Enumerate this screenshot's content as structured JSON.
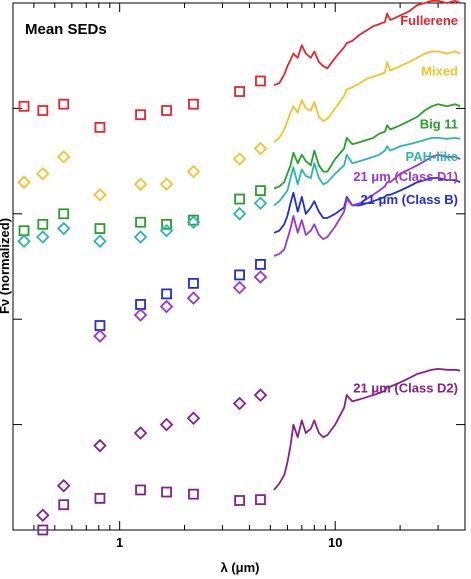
{
  "chart_data": {
    "type": "scatter",
    "title": "Mean SEDs",
    "xlabel": "λ (μm)",
    "ylabel": "Fν (normalized)",
    "xscale": "log",
    "xlim": [
      0.32,
      40
    ],
    "ylim": [
      0,
      12.5
    ],
    "xticks": [
      1,
      10
    ],
    "xtick_labels": [
      "1",
      "10"
    ],
    "grid": false,
    "legend": "inline labels on right",
    "photometry_wavelengths": [
      0.36,
      0.44,
      0.55,
      0.81,
      1.25,
      1.65,
      2.2,
      3.6,
      4.5
    ],
    "series": [
      {
        "name": "Fullerene",
        "label_text": "Fullerene",
        "color": "#e8262b",
        "marker": "square",
        "points": [
          [
            0.36,
            10.05
          ],
          [
            0.44,
            9.95
          ],
          [
            0.55,
            10.1
          ],
          [
            0.81,
            9.55
          ],
          [
            1.25,
            9.85
          ],
          [
            1.65,
            9.95
          ],
          [
            2.2,
            10.1
          ],
          [
            3.6,
            10.4
          ],
          [
            4.5,
            10.65
          ]
        ],
        "spectrum_wl": [
          5.2,
          5.5,
          5.8,
          6.0,
          6.2,
          6.4,
          6.7,
          7.0,
          7.3,
          7.7,
          8.0,
          8.4,
          8.8,
          9.2,
          10,
          11,
          11.3,
          12,
          13,
          14,
          15,
          16,
          17,
          17.4,
          18,
          19,
          20,
          22,
          24,
          26,
          28,
          30,
          33,
          36,
          38
        ],
        "spectrum_flux": [
          10.55,
          10.6,
          10.8,
          11.0,
          11.15,
          11.3,
          11.2,
          11.5,
          11.3,
          11.2,
          11.35,
          11.1,
          11.0,
          10.95,
          11.2,
          11.45,
          11.55,
          11.6,
          11.75,
          11.85,
          11.95,
          12.0,
          12.05,
          12.25,
          12.1,
          12.15,
          12.2,
          12.3,
          12.45,
          12.5,
          12.55,
          12.55,
          12.5,
          12.55,
          12.5
        ]
      },
      {
        "name": "Mixed",
        "label_text": "Mixed",
        "color": "#f5c22c",
        "marker": "diamond",
        "points": [
          [
            0.36,
            8.25
          ],
          [
            0.44,
            8.45
          ],
          [
            0.55,
            8.85
          ],
          [
            0.81,
            7.95
          ],
          [
            1.25,
            8.2
          ],
          [
            1.65,
            8.2
          ],
          [
            2.2,
            8.5
          ],
          [
            3.6,
            8.8
          ],
          [
            4.5,
            9.05
          ]
        ],
        "spectrum_wl": [
          5.2,
          5.5,
          5.8,
          6.0,
          6.2,
          6.4,
          6.7,
          7.0,
          7.3,
          7.7,
          8.0,
          8.4,
          8.8,
          9.2,
          10,
          11,
          11.3,
          12,
          13,
          14,
          15,
          16,
          17,
          17.4,
          18,
          19,
          20,
          22,
          24,
          26,
          28,
          30,
          33,
          36,
          38
        ],
        "spectrum_flux": [
          9.2,
          9.3,
          9.5,
          9.7,
          9.9,
          10.05,
          9.9,
          10.2,
          10.0,
          9.95,
          10.15,
          9.8,
          9.7,
          9.75,
          10.0,
          10.3,
          10.45,
          10.5,
          10.6,
          10.7,
          10.75,
          10.8,
          10.85,
          11.1,
          10.9,
          10.95,
          11.0,
          11.1,
          11.2,
          11.3,
          11.35,
          11.35,
          11.3,
          11.35,
          11.3
        ]
      },
      {
        "name": "Big 11",
        "label_text": "Big 11",
        "color": "#28a02c",
        "marker": "square",
        "points": [
          [
            0.36,
            7.1
          ],
          [
            0.44,
            7.25
          ],
          [
            0.55,
            7.5
          ],
          [
            0.81,
            7.15
          ],
          [
            1.25,
            7.3
          ],
          [
            1.65,
            7.25
          ],
          [
            2.2,
            7.35
          ],
          [
            3.6,
            7.85
          ],
          [
            4.5,
            8.05
          ]
        ],
        "spectrum_wl": [
          5.2,
          5.5,
          5.8,
          6.0,
          6.2,
          6.4,
          6.7,
          7.0,
          7.3,
          7.7,
          8.0,
          8.4,
          8.8,
          9.2,
          10,
          11,
          11.3,
          12,
          13,
          14,
          15,
          16,
          17,
          17.4,
          18,
          19,
          20,
          22,
          24,
          26,
          28,
          30,
          33,
          36,
          38
        ],
        "spectrum_flux": [
          8.1,
          8.15,
          8.25,
          8.45,
          8.65,
          8.95,
          8.7,
          8.9,
          8.75,
          8.65,
          9.0,
          8.65,
          8.5,
          8.5,
          8.8,
          9.05,
          9.3,
          9.15,
          9.2,
          9.25,
          9.3,
          9.4,
          9.45,
          9.6,
          9.5,
          9.55,
          9.6,
          9.7,
          9.8,
          9.95,
          10.05,
          10.1,
          10.05,
          10.1,
          10.05
        ]
      },
      {
        "name": "PAH-like",
        "label_text": "PAH-like",
        "color": "#2bb5b0",
        "marker": "diamond",
        "points": [
          [
            0.36,
            6.85
          ],
          [
            0.44,
            6.95
          ],
          [
            0.55,
            7.15
          ],
          [
            0.81,
            6.85
          ],
          [
            1.25,
            6.95
          ],
          [
            1.65,
            7.1
          ],
          [
            2.2,
            7.3
          ],
          [
            3.6,
            7.5
          ],
          [
            4.5,
            7.75
          ]
        ],
        "spectrum_wl": [
          5.2,
          5.5,
          5.8,
          6.0,
          6.2,
          6.4,
          6.7,
          7.0,
          7.3,
          7.7,
          8.0,
          8.4,
          8.8,
          9.2,
          10,
          11,
          11.3,
          12,
          13,
          14,
          15,
          16,
          17,
          17.4,
          18,
          19,
          20,
          22,
          24,
          26,
          28,
          30,
          33,
          36,
          38
        ],
        "spectrum_flux": [
          7.7,
          7.8,
          7.95,
          8.05,
          8.35,
          8.6,
          8.2,
          8.55,
          8.4,
          8.35,
          8.7,
          8.35,
          8.2,
          8.25,
          8.45,
          8.65,
          8.9,
          8.7,
          8.75,
          8.8,
          8.85,
          8.9,
          9.0,
          9.1,
          9.0,
          9.05,
          9.1,
          9.15,
          9.2,
          9.25,
          9.3,
          9.3,
          9.28,
          9.3,
          9.28
        ]
      },
      {
        "name": "21 μm (Class B)",
        "label_text": "21 μm (Class B)",
        "color": "#1f2ed6",
        "marker": "square",
        "points": [
          [
            0.81,
            4.85
          ],
          [
            1.25,
            5.35
          ],
          [
            1.65,
            5.6
          ],
          [
            2.2,
            5.85
          ],
          [
            3.6,
            6.05
          ],
          [
            4.5,
            6.3
          ]
        ],
        "spectrum_wl": [
          5.2,
          5.5,
          5.8,
          6.0,
          6.2,
          6.4,
          6.7,
          7.0,
          7.3,
          7.7,
          8.0,
          8.4,
          8.8,
          9.2,
          10,
          11,
          11.3,
          12,
          13,
          14,
          15,
          16,
          17,
          17.4,
          18,
          19,
          20,
          22,
          24,
          26,
          28,
          30,
          33,
          36,
          38
        ],
        "spectrum_flux": [
          7.05,
          7.1,
          7.25,
          7.45,
          7.75,
          8.0,
          7.55,
          7.9,
          7.5,
          7.65,
          7.8,
          7.55,
          7.4,
          7.4,
          7.5,
          7.65,
          7.9,
          7.7,
          7.7,
          7.75,
          7.8,
          7.85,
          7.9,
          7.95,
          7.95,
          8.0,
          8.05,
          8.15,
          8.25,
          8.3,
          8.35,
          8.35,
          8.3,
          8.3,
          8.25
        ]
      },
      {
        "name": "21 μm (Class D1)",
        "label_text": "21 μm (Class D1)",
        "color": "#9a36d6",
        "marker": "diamond",
        "points": [
          [
            0.81,
            4.6
          ],
          [
            1.25,
            5.1
          ],
          [
            1.65,
            5.3
          ],
          [
            2.2,
            5.5
          ],
          [
            3.6,
            5.75
          ],
          [
            4.5,
            6.0
          ]
        ],
        "spectrum_wl": [
          5.2,
          5.5,
          5.8,
          6.0,
          6.2,
          6.4,
          6.7,
          7.0,
          7.3,
          7.7,
          8.0,
          8.4,
          8.8,
          9.2,
          10,
          11,
          11.3,
          12,
          13,
          14,
          15,
          16,
          17,
          17.4,
          18,
          19,
          20,
          22,
          24,
          26,
          28,
          30,
          33,
          36,
          38
        ],
        "spectrum_flux": [
          6.5,
          6.55,
          6.65,
          6.9,
          7.15,
          7.45,
          7.05,
          7.35,
          7.0,
          7.1,
          7.25,
          7.0,
          6.9,
          6.95,
          7.2,
          7.55,
          7.85,
          7.7,
          7.75,
          7.85,
          7.95,
          8.05,
          8.15,
          8.25,
          8.25,
          8.35,
          8.45,
          8.55,
          8.65,
          8.75,
          8.85,
          8.9,
          8.85,
          8.85,
          8.8
        ]
      },
      {
        "name": "21 μm (Class D2)",
        "label_text": "21 μm (Class D2)",
        "color": "#86208f",
        "marker": "square",
        "points": [
          [
            0.44,
            0.0
          ],
          [
            0.55,
            0.6
          ],
          [
            0.81,
            0.75
          ],
          [
            1.25,
            0.95
          ],
          [
            1.65,
            0.9
          ],
          [
            2.2,
            0.85
          ],
          [
            3.6,
            0.7
          ],
          [
            4.5,
            0.72
          ]
        ],
        "spectrum_wl": [
          5.2,
          5.5,
          5.8,
          6.0,
          6.2,
          6.4,
          6.7,
          7.0,
          7.3,
          7.7,
          8.0,
          8.4,
          8.8,
          9.2,
          10,
          11,
          11.3,
          12,
          13,
          14,
          15,
          16,
          17,
          17.4,
          18,
          19,
          20,
          22,
          24,
          26,
          28,
          30,
          33,
          36,
          38
        ],
        "spectrum_flux": [
          0.95,
          1.1,
          1.3,
          1.6,
          2.0,
          2.5,
          2.2,
          2.6,
          2.3,
          2.4,
          2.6,
          2.3,
          2.2,
          2.25,
          2.5,
          2.9,
          3.2,
          3.05,
          3.1,
          3.15,
          3.2,
          3.25,
          3.3,
          3.4,
          3.4,
          3.45,
          3.5,
          3.6,
          3.7,
          3.75,
          3.8,
          3.82,
          3.8,
          3.8,
          3.78
        ]
      }
    ],
    "extra_markers": [
      {
        "series": "21 μm (Class D2)",
        "marker": "diamond",
        "points": [
          [
            0.44,
            0.35
          ],
          [
            0.55,
            1.05
          ],
          [
            0.81,
            2.0
          ],
          [
            1.25,
            2.3
          ],
          [
            1.65,
            2.5
          ],
          [
            2.2,
            2.65
          ],
          [
            3.6,
            3.0
          ],
          [
            4.5,
            3.2
          ]
        ]
      }
    ]
  }
}
